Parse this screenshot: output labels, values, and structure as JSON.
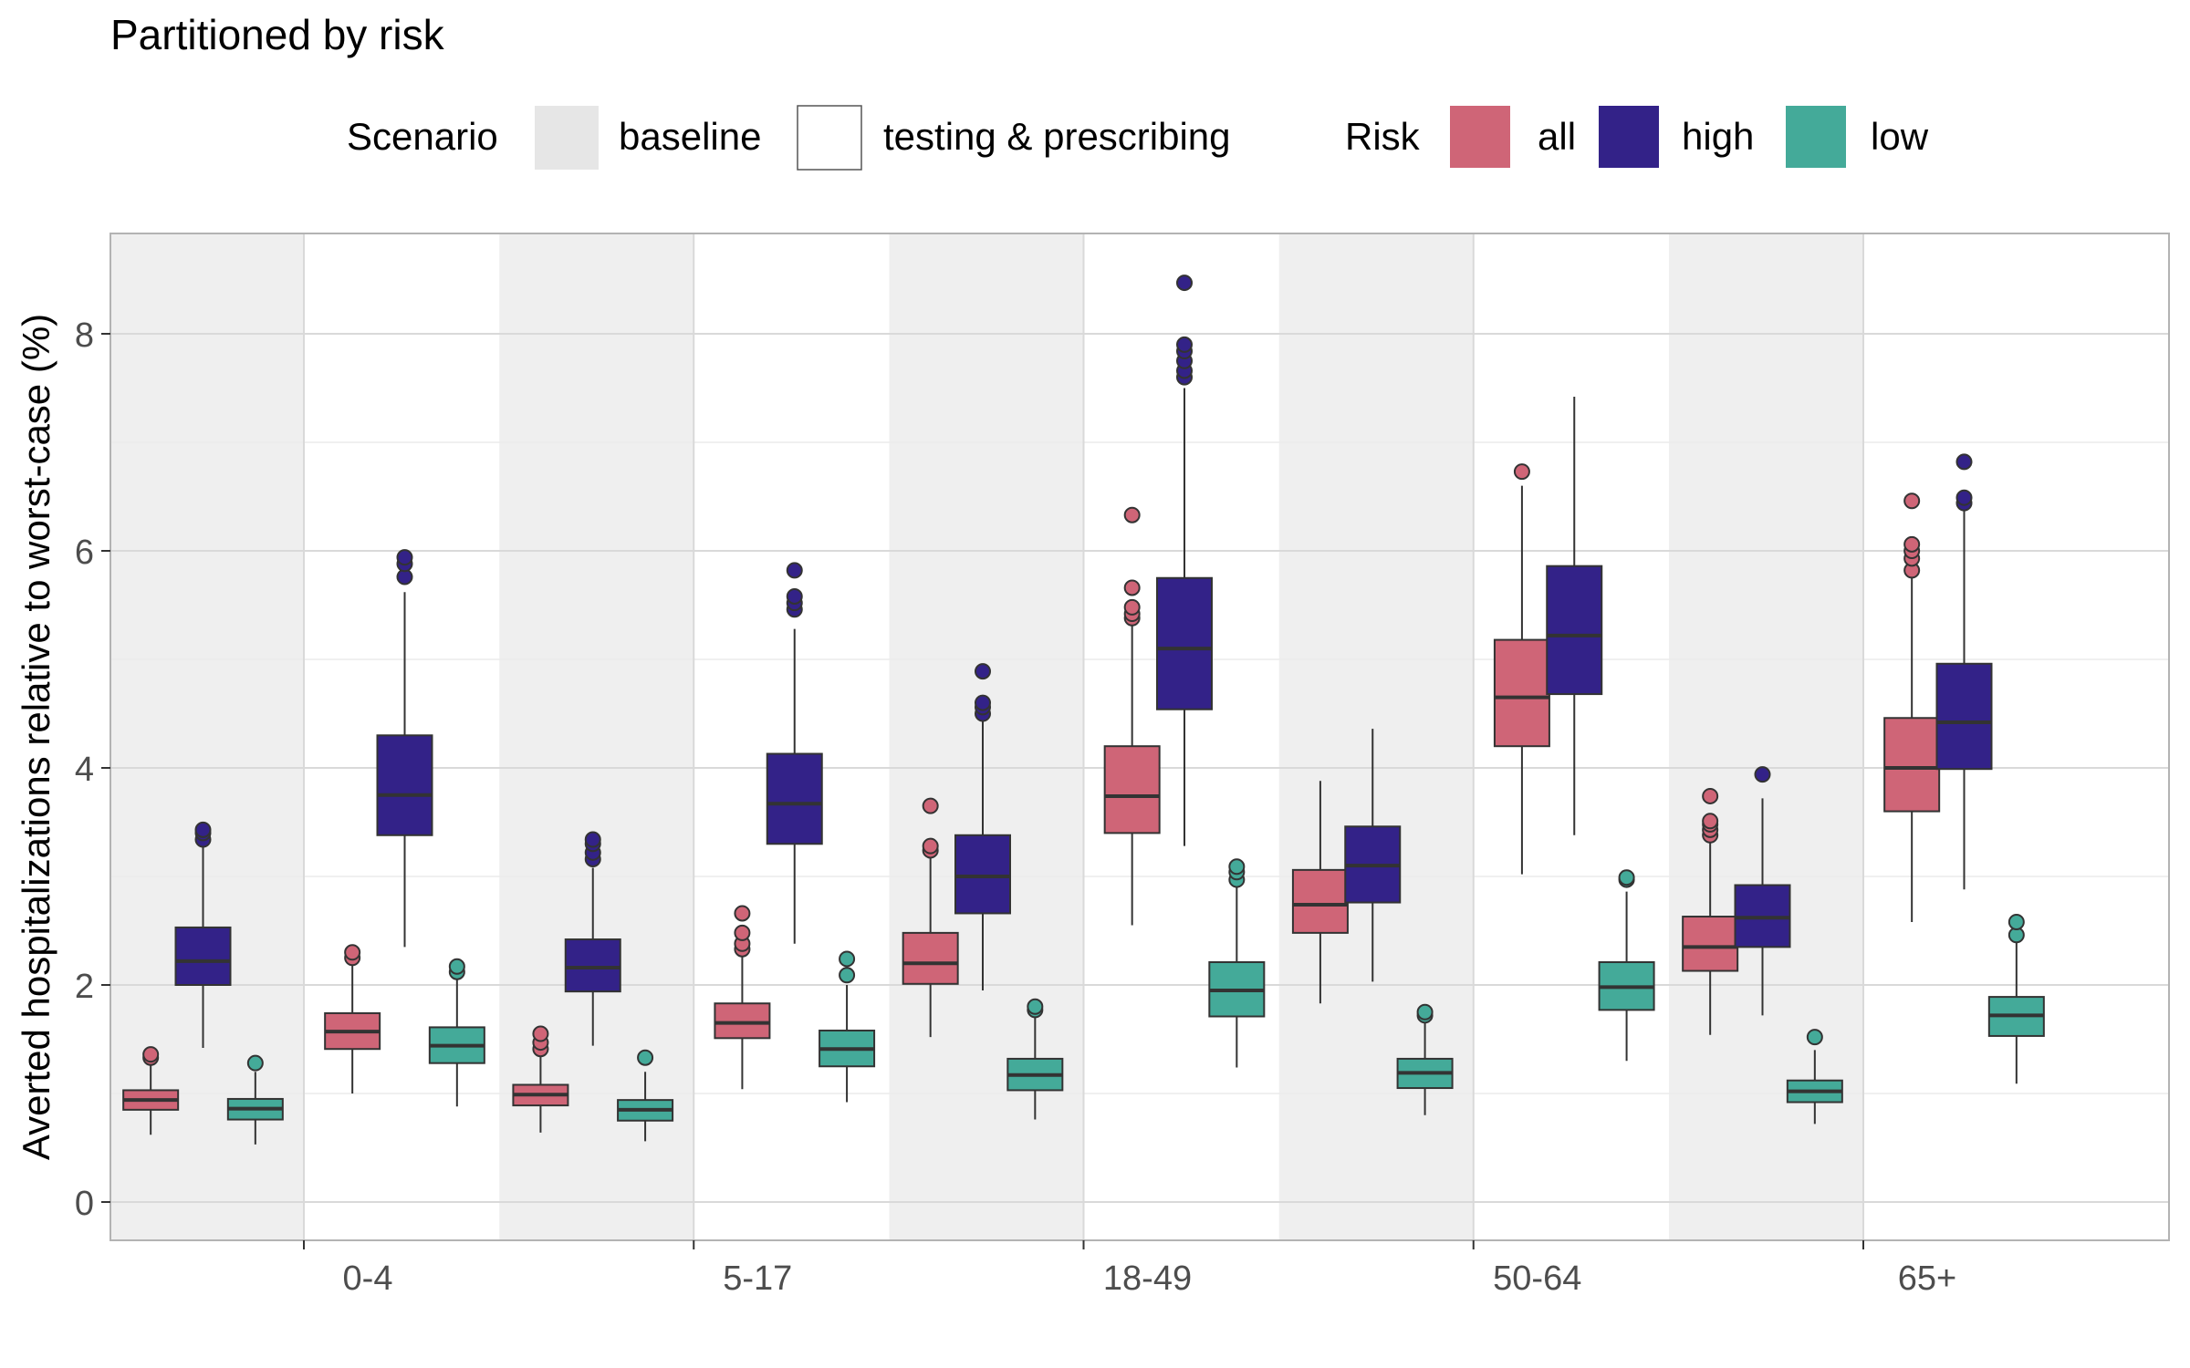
{
  "chart_data": {
    "type": "box",
    "title": "Partitioned by risk",
    "ylabel": "Averted hospitalizations relative to worst-case (%)",
    "xlabel": "",
    "ylim": [
      -0.4,
      8.9
    ],
    "yticks": [
      0,
      2,
      4,
      6,
      8
    ],
    "categories": [
      "0-4",
      "5-17",
      "18-49",
      "50-64",
      "65+"
    ],
    "legend": {
      "scenario_title": "Scenario",
      "scenario_items": [
        {
          "key": "baseline",
          "label": "baseline",
          "color": "#e6e6e6"
        },
        {
          "key": "testing",
          "label": "testing & prescribing",
          "color": "#ffffff"
        }
      ],
      "risk_title": "Risk",
      "risk_items": [
        {
          "key": "all",
          "label": "all",
          "color": "#cf6577"
        },
        {
          "key": "high",
          "label": "high",
          "color": "#332288"
        },
        {
          "key": "low",
          "label": "low",
          "color": "#44aa99"
        }
      ],
      "placement": "top"
    },
    "grid": true,
    "boxes": [
      {
        "category": "0-4",
        "scenario": "baseline",
        "risk": "all",
        "min": 0.62,
        "q1": 0.85,
        "median": 0.94,
        "q3": 1.03,
        "max": 1.28,
        "outliers": [
          1.33,
          1.36
        ]
      },
      {
        "category": "0-4",
        "scenario": "baseline",
        "risk": "high",
        "min": 1.42,
        "q1": 2.0,
        "median": 2.22,
        "q3": 2.53,
        "max": 3.28,
        "outliers": [
          3.34,
          3.4,
          3.43
        ]
      },
      {
        "category": "0-4",
        "scenario": "baseline",
        "risk": "low",
        "min": 0.53,
        "q1": 0.76,
        "median": 0.86,
        "q3": 0.95,
        "max": 1.2,
        "outliers": [
          1.28
        ]
      },
      {
        "category": "0-4",
        "scenario": "testing",
        "risk": "all",
        "min": 1.0,
        "q1": 1.41,
        "median": 1.57,
        "q3": 1.74,
        "max": 2.2,
        "outliers": [
          2.25,
          2.3
        ]
      },
      {
        "category": "0-4",
        "scenario": "testing",
        "risk": "high",
        "min": 2.35,
        "q1": 3.38,
        "median": 3.75,
        "q3": 4.3,
        "max": 5.62,
        "outliers": [
          5.76,
          5.88,
          5.94
        ]
      },
      {
        "category": "0-4",
        "scenario": "testing",
        "risk": "low",
        "min": 0.88,
        "q1": 1.28,
        "median": 1.44,
        "q3": 1.61,
        "max": 2.05,
        "outliers": [
          2.12,
          2.17
        ]
      },
      {
        "category": "5-17",
        "scenario": "baseline",
        "risk": "all",
        "min": 0.64,
        "q1": 0.89,
        "median": 0.99,
        "q3": 1.08,
        "max": 1.36,
        "outliers": [
          1.41,
          1.47,
          1.55
        ]
      },
      {
        "category": "5-17",
        "scenario": "baseline",
        "risk": "high",
        "min": 1.44,
        "q1": 1.94,
        "median": 2.16,
        "q3": 2.42,
        "max": 3.08,
        "outliers": [
          3.16,
          3.22,
          3.3,
          3.34
        ]
      },
      {
        "category": "5-17",
        "scenario": "baseline",
        "risk": "low",
        "min": 0.56,
        "q1": 0.75,
        "median": 0.85,
        "q3": 0.94,
        "max": 1.2,
        "outliers": [
          1.33
        ]
      },
      {
        "category": "5-17",
        "scenario": "testing",
        "risk": "all",
        "min": 1.04,
        "q1": 1.51,
        "median": 1.65,
        "q3": 1.83,
        "max": 2.28,
        "outliers": [
          2.33,
          2.38,
          2.48,
          2.66
        ]
      },
      {
        "category": "5-17",
        "scenario": "testing",
        "risk": "high",
        "min": 2.38,
        "q1": 3.3,
        "median": 3.67,
        "q3": 4.13,
        "max": 5.28,
        "outliers": [
          5.46,
          5.52,
          5.58,
          5.82
        ]
      },
      {
        "category": "5-17",
        "scenario": "testing",
        "risk": "low",
        "min": 0.92,
        "q1": 1.25,
        "median": 1.41,
        "q3": 1.58,
        "max": 2.0,
        "outliers": [
          2.09,
          2.24
        ]
      },
      {
        "category": "18-49",
        "scenario": "baseline",
        "risk": "all",
        "min": 1.52,
        "q1": 2.01,
        "median": 2.2,
        "q3": 2.48,
        "max": 3.18,
        "outliers": [
          3.24,
          3.28,
          3.65
        ]
      },
      {
        "category": "18-49",
        "scenario": "baseline",
        "risk": "high",
        "min": 1.95,
        "q1": 2.66,
        "median": 3.0,
        "q3": 3.38,
        "max": 4.44,
        "outliers": [
          4.5,
          4.56,
          4.6,
          4.89
        ]
      },
      {
        "category": "18-49",
        "scenario": "baseline",
        "risk": "low",
        "min": 0.76,
        "q1": 1.03,
        "median": 1.17,
        "q3": 1.32,
        "max": 1.7,
        "outliers": [
          1.77,
          1.8
        ]
      },
      {
        "category": "18-49",
        "scenario": "testing",
        "risk": "all",
        "min": 2.55,
        "q1": 3.4,
        "median": 3.74,
        "q3": 4.2,
        "max": 5.32,
        "outliers": [
          5.38,
          5.42,
          5.48,
          5.66,
          6.33
        ]
      },
      {
        "category": "18-49",
        "scenario": "testing",
        "risk": "high",
        "min": 3.28,
        "q1": 4.54,
        "median": 5.1,
        "q3": 5.75,
        "max": 7.5,
        "outliers": [
          7.6,
          7.66,
          7.75,
          7.84,
          7.9,
          8.47
        ]
      },
      {
        "category": "18-49",
        "scenario": "testing",
        "risk": "low",
        "min": 1.24,
        "q1": 1.71,
        "median": 1.95,
        "q3": 2.21,
        "max": 2.9,
        "outliers": [
          2.97,
          3.04,
          3.09
        ]
      },
      {
        "category": "50-64",
        "scenario": "baseline",
        "risk": "all",
        "min": 1.83,
        "q1": 2.48,
        "median": 2.74,
        "q3": 3.06,
        "max": 3.88,
        "outliers": []
      },
      {
        "category": "50-64",
        "scenario": "baseline",
        "risk": "high",
        "min": 2.03,
        "q1": 2.76,
        "median": 3.1,
        "q3": 3.46,
        "max": 4.36,
        "outliers": []
      },
      {
        "category": "50-64",
        "scenario": "baseline",
        "risk": "low",
        "min": 0.8,
        "q1": 1.05,
        "median": 1.19,
        "q3": 1.32,
        "max": 1.68,
        "outliers": [
          1.72,
          1.75
        ]
      },
      {
        "category": "50-64",
        "scenario": "testing",
        "risk": "all",
        "min": 3.02,
        "q1": 4.2,
        "median": 4.65,
        "q3": 5.18,
        "max": 6.6,
        "outliers": [
          6.73
        ]
      },
      {
        "category": "50-64",
        "scenario": "testing",
        "risk": "high",
        "min": 3.38,
        "q1": 4.68,
        "median": 5.22,
        "q3": 5.86,
        "max": 7.42,
        "outliers": []
      },
      {
        "category": "50-64",
        "scenario": "testing",
        "risk": "low",
        "min": 1.3,
        "q1": 1.77,
        "median": 1.98,
        "q3": 2.21,
        "max": 2.86,
        "outliers": [
          2.97,
          2.99
        ]
      },
      {
        "category": "65+",
        "scenario": "baseline",
        "risk": "all",
        "min": 1.54,
        "q1": 2.13,
        "median": 2.35,
        "q3": 2.63,
        "max": 3.32,
        "outliers": [
          3.38,
          3.43,
          3.48,
          3.51,
          3.74
        ]
      },
      {
        "category": "65+",
        "scenario": "baseline",
        "risk": "high",
        "min": 1.72,
        "q1": 2.35,
        "median": 2.62,
        "q3": 2.92,
        "max": 3.72,
        "outliers": [
          3.94
        ]
      },
      {
        "category": "65+",
        "scenario": "baseline",
        "risk": "low",
        "min": 0.72,
        "q1": 0.92,
        "median": 1.02,
        "q3": 1.12,
        "max": 1.4,
        "outliers": [
          1.52
        ]
      },
      {
        "category": "65+",
        "scenario": "testing",
        "risk": "all",
        "min": 2.58,
        "q1": 3.6,
        "median": 4.0,
        "q3": 4.46,
        "max": 5.76,
        "outliers": [
          5.82,
          5.93,
          6.0,
          6.06,
          6.46
        ]
      },
      {
        "category": "65+",
        "scenario": "testing",
        "risk": "high",
        "min": 2.88,
        "q1": 3.99,
        "median": 4.42,
        "q3": 4.96,
        "max": 6.4,
        "outliers": [
          6.44,
          6.49,
          6.82
        ]
      },
      {
        "category": "65+",
        "scenario": "testing",
        "risk": "low",
        "min": 1.09,
        "q1": 1.53,
        "median": 1.72,
        "q3": 1.89,
        "max": 2.42,
        "outliers": [
          2.46,
          2.58
        ]
      }
    ]
  }
}
